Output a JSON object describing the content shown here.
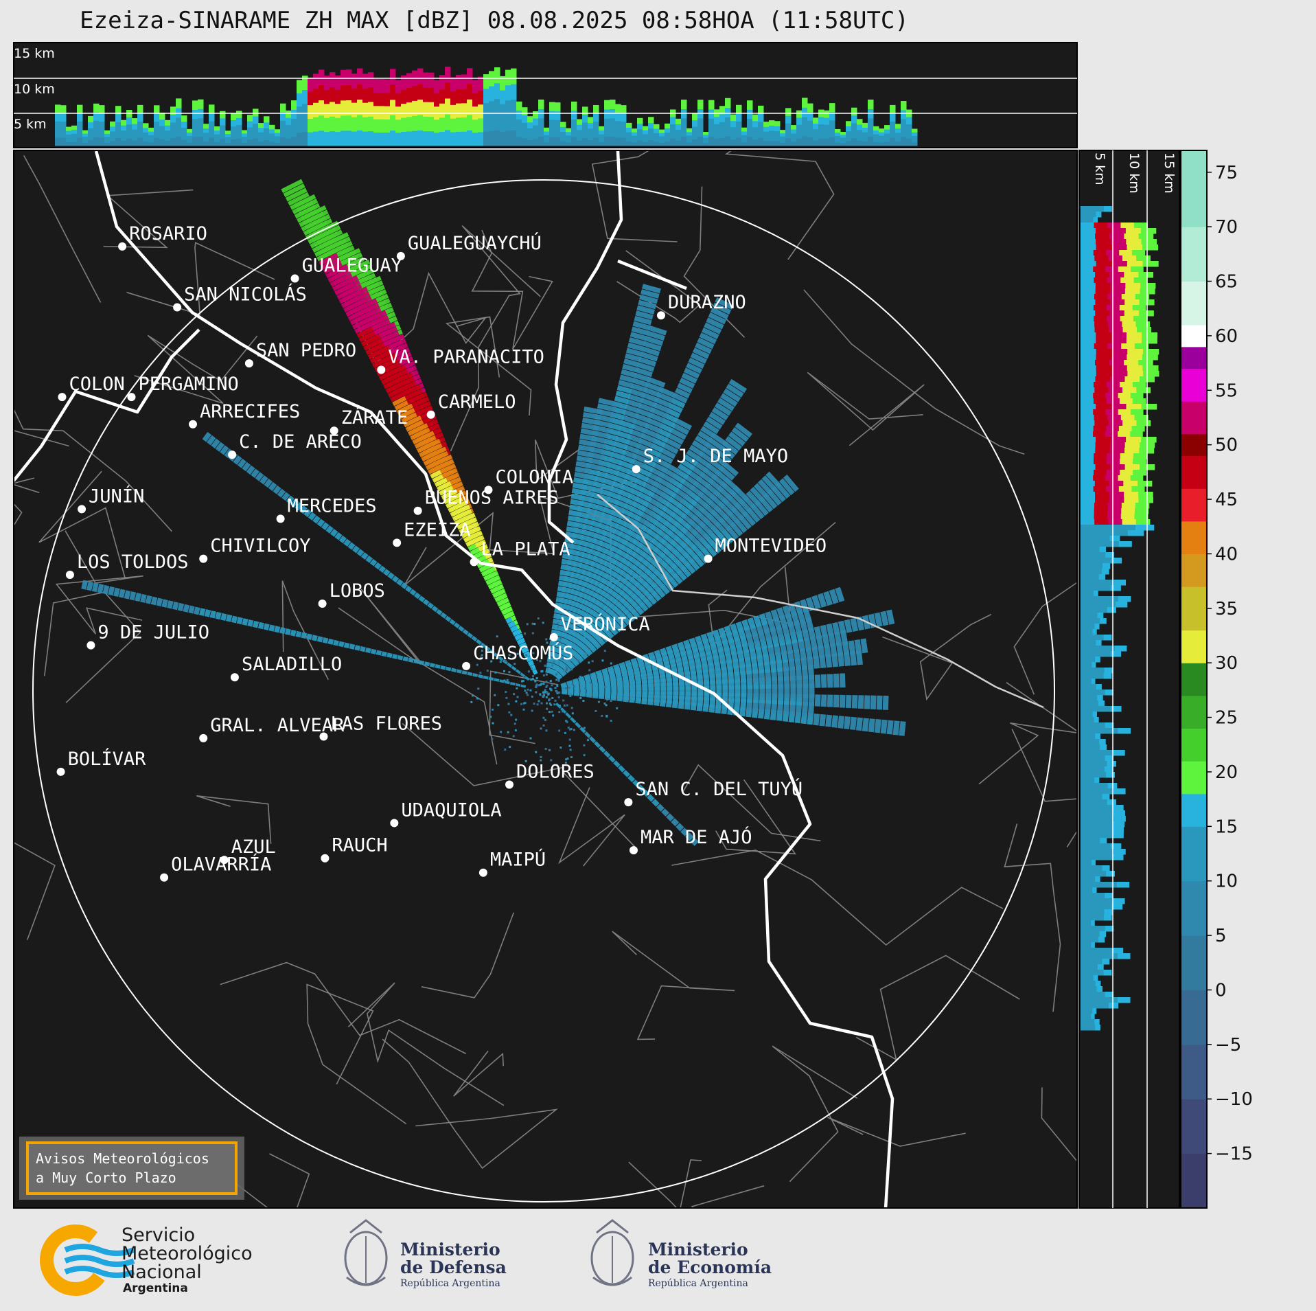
{
  "title": "Ezeiza-SINARAME ZH MAX [dBZ] 08.08.2025 08:58HOA (11:58UTC)",
  "top_panel": {
    "height_labels": [
      "15 km",
      "10 km",
      "5 km"
    ]
  },
  "side_panel": {
    "height_labels": [
      "5 km",
      "10 km",
      "15 km"
    ]
  },
  "radar_site": "EZEIZA",
  "cities": [
    {
      "name": "ROSARIO",
      "lon": -60.64,
      "lat": -32.95
    },
    {
      "name": "GUALEGUAYCHÚ",
      "lon": -58.51,
      "lat": -33.01
    },
    {
      "name": "GUALEGUAY",
      "lon": -59.32,
      "lat": -33.15
    },
    {
      "name": "SAN NICOLÁS",
      "lon": -60.22,
      "lat": -33.33
    },
    {
      "name": "DURAZNO",
      "lon": -56.52,
      "lat": -33.38
    },
    {
      "name": "SAN PEDRO",
      "lon": -59.67,
      "lat": -33.68
    },
    {
      "name": "VA. PARANACITO",
      "lon": -58.66,
      "lat": -33.72
    },
    {
      "name": "COLON",
      "lon": -61.1,
      "lat": -33.89
    },
    {
      "name": "PERGAMINO",
      "lon": -60.57,
      "lat": -33.89
    },
    {
      "name": "CARMELO",
      "lon": -58.28,
      "lat": -34.0
    },
    {
      "name": "ARRECIFES",
      "lon": -60.1,
      "lat": -34.06
    },
    {
      "name": "ZÁRATE",
      "lon": -59.02,
      "lat": -34.1
    },
    {
      "name": "C. DE ARECO",
      "lon": -59.8,
      "lat": -34.25
    },
    {
      "name": "S. J. DE MAYO",
      "lon": -56.71,
      "lat": -34.34
    },
    {
      "name": "COLONIA",
      "lon": -57.84,
      "lat": -34.47
    },
    {
      "name": "BUENOS AIRES",
      "lon": -58.38,
      "lat": -34.6
    },
    {
      "name": "JUNÍN",
      "lon": -60.95,
      "lat": -34.59
    },
    {
      "name": "MERCEDES",
      "lon": -59.43,
      "lat": -34.65
    },
    {
      "name": "EZEIZA",
      "lon": -58.54,
      "lat": -34.8
    },
    {
      "name": "MONTEVIDEO",
      "lon": -56.16,
      "lat": -34.9
    },
    {
      "name": "CHIVILCOY",
      "lon": -60.02,
      "lat": -34.9
    },
    {
      "name": "LA PLATA",
      "lon": -57.95,
      "lat": -34.92
    },
    {
      "name": "LOS TOLDOS",
      "lon": -61.04,
      "lat": -35.0
    },
    {
      "name": "LOBOS",
      "lon": -59.11,
      "lat": -35.18
    },
    {
      "name": "VERÓNICA",
      "lon": -57.34,
      "lat": -35.39
    },
    {
      "name": "9 DE JULIO",
      "lon": -60.88,
      "lat": -35.44
    },
    {
      "name": "CHASCOMÚS",
      "lon": -58.01,
      "lat": -35.57
    },
    {
      "name": "SALADILLO",
      "lon": -59.78,
      "lat": -35.64
    },
    {
      "name": "GRAL. ALVEAR",
      "lon": -60.02,
      "lat": -36.02
    },
    {
      "name": "LAS FLORES",
      "lon": -59.1,
      "lat": -36.01
    },
    {
      "name": "BOLÍVAR",
      "lon": -61.11,
      "lat": -36.23
    },
    {
      "name": "DOLORES",
      "lon": -57.68,
      "lat": -36.31
    },
    {
      "name": "SAN C. DEL TUYÚ",
      "lon": -56.77,
      "lat": -36.42
    },
    {
      "name": "UDAQUIOLA",
      "lon": -58.56,
      "lat": -36.55
    },
    {
      "name": "MAR DE AJÓ",
      "lon": -56.73,
      "lat": -36.72
    },
    {
      "name": "AZUL",
      "lon": -59.86,
      "lat": -36.78
    },
    {
      "name": "RAUCH",
      "lon": -59.09,
      "lat": -36.77
    },
    {
      "name": "OLAVARRÍA",
      "lon": -60.32,
      "lat": -36.89
    },
    {
      "name": "MAIPÚ",
      "lon": -57.88,
      "lat": -36.86
    }
  ],
  "colorbar": {
    "unit": "dBZ",
    "ticks": [
      75,
      70,
      65,
      60,
      55,
      50,
      45,
      40,
      35,
      30,
      25,
      20,
      15,
      10,
      5,
      0,
      -5,
      -10,
      -15
    ],
    "range": [
      -20,
      77
    ],
    "stops": [
      {
        "from": -20,
        "color": "#3b3d6b"
      },
      {
        "from": -15,
        "color": "#404a78"
      },
      {
        "from": -10,
        "color": "#3e5a86"
      },
      {
        "from": -5,
        "color": "#386b93"
      },
      {
        "from": 0,
        "color": "#337a9f"
      },
      {
        "from": 5,
        "color": "#2f88ad"
      },
      {
        "from": 10,
        "color": "#2a97bd"
      },
      {
        "from": 15,
        "color": "#28b3de"
      },
      {
        "from": 18,
        "color": "#5ef43e"
      },
      {
        "from": 21,
        "color": "#44cf2d"
      },
      {
        "from": 24,
        "color": "#37ad28"
      },
      {
        "from": 27,
        "color": "#2a8a22"
      },
      {
        "from": 30,
        "color": "#e6ec3a"
      },
      {
        "from": 33,
        "color": "#c8c02b"
      },
      {
        "from": 37,
        "color": "#d49a20"
      },
      {
        "from": 40,
        "color": "#e47f12"
      },
      {
        "from": 43,
        "color": "#e81f2a"
      },
      {
        "from": 46,
        "color": "#c60014"
      },
      {
        "from": 49,
        "color": "#8b0000"
      },
      {
        "from": 51,
        "color": "#c8006a"
      },
      {
        "from": 54,
        "color": "#e800d6"
      },
      {
        "from": 57,
        "color": "#9c009c"
      },
      {
        "from": 59,
        "color": "#ffffff"
      },
      {
        "from": 61,
        "color": "#d6f5e6"
      },
      {
        "from": 65,
        "color": "#b2ecd6"
      },
      {
        "from": 70,
        "color": "#8fe0c6"
      }
    ]
  },
  "notice": {
    "line1": "Avisos Meteorológicos",
    "line2": "a Muy Corto Plazo",
    "border_color": "#f5a500"
  },
  "footer": {
    "smn": {
      "line1": "Servicio",
      "line2": "Meteorológico",
      "line3": "Nacional",
      "line4": "Argentina"
    },
    "defensa": {
      "line1": "Ministerio",
      "line2": "de Defensa",
      "line3": "República Argentina"
    },
    "economia": {
      "line1": "Ministerio",
      "line2": "de Economía",
      "line3": "República Argentina"
    }
  }
}
